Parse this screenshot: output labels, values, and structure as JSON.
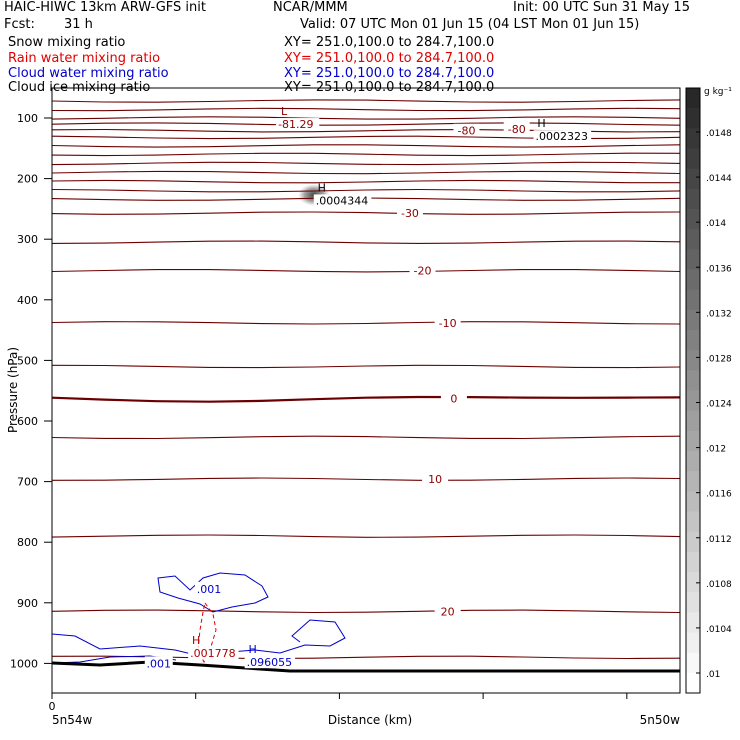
{
  "header": {
    "model": "HAIC-HIWC 13km ARW-GFS init",
    "org": "NCAR/MMM",
    "init": "Init: 00 UTC Sun 31 May 15",
    "fcst_label": "Fcst:",
    "fcst_value": "31 h",
    "valid": "Valid: 07 UTC Mon 01 Jun 15 (04 LST Mon 01 Jun 15)"
  },
  "fields": [
    {
      "name": "Snow mixing ratio",
      "xy": "XY= 251.0,100.0 to 284.7,100.0",
      "color": "#000000"
    },
    {
      "name": "Rain water mixing ratio",
      "xy": "XY= 251.0,100.0 to 284.7,100.0",
      "color": "#e00000"
    },
    {
      "name": "Cloud water mixing ratio",
      "xy": "XY= 251.0,100.0 to 284.7,100.0",
      "color": "#0000cc"
    },
    {
      "name": "Cloud ice mixing ratio",
      "xy": "XY= 251.0,100.0 to 284.7,100.0",
      "color": "#000000"
    }
  ],
  "chart_data": {
    "type": "line",
    "ylabel": "Pressure (hPa)",
    "xlabel": "Distance (km)",
    "y_ticks": [
      100,
      200,
      300,
      400,
      500,
      600,
      700,
      800,
      900,
      1000
    ],
    "ylim": [
      1050,
      50
    ],
    "x_tick_label": "0",
    "x_left_label": "5n54w",
    "x_right_label": "5n50w",
    "temperature_labels": [
      {
        "text": "-80",
        "x": 0.66,
        "p": 121
      },
      {
        "text": "-80",
        "x": 0.74,
        "p": 118
      },
      {
        "text": "-30",
        "x": 0.57,
        "p": 257
      },
      {
        "text": "-20",
        "x": 0.59,
        "p": 352
      },
      {
        "text": "-10",
        "x": 0.63,
        "p": 438
      },
      {
        "text": "0",
        "x": 0.64,
        "p": 563
      },
      {
        "text": "10",
        "x": 0.61,
        "p": 696
      },
      {
        "text": "20",
        "x": 0.63,
        "p": 914
      }
    ],
    "extrema": [
      {
        "kind": "L",
        "value": "-81.29",
        "x": 0.36,
        "p": 110,
        "color": "#8b0000"
      },
      {
        "kind": "H",
        "value": ".0002323",
        "x": 0.77,
        "p": 130,
        "color": "#000000"
      },
      {
        "kind": "H",
        "value": ".0004344",
        "x": 0.42,
        "p": 236,
        "color": "#000000"
      },
      {
        "kind": "H",
        "value": ".001778",
        "x": 0.22,
        "p": 983,
        "color": "#b00000"
      },
      {
        "kind": "H",
        "value": ".096055",
        "x": 0.31,
        "p": 998,
        "color": "#0000cc"
      }
    ],
    "cloud_labels": [
      {
        "text": ".001",
        "x": 0.25,
        "p": 877,
        "color": "#0000cc"
      },
      {
        "text": ".001",
        "x": 0.17,
        "p": 1000,
        "color": "#0000cc"
      }
    ],
    "colorbar": {
      "unit": "g kg⁻¹",
      "ticks": [
        ".0148",
        ".0144",
        ".014",
        ".0136",
        ".0132",
        ".0128",
        ".0124",
        ".012",
        ".0116",
        ".0112",
        ".0108",
        ".0104",
        ".01"
      ]
    }
  }
}
